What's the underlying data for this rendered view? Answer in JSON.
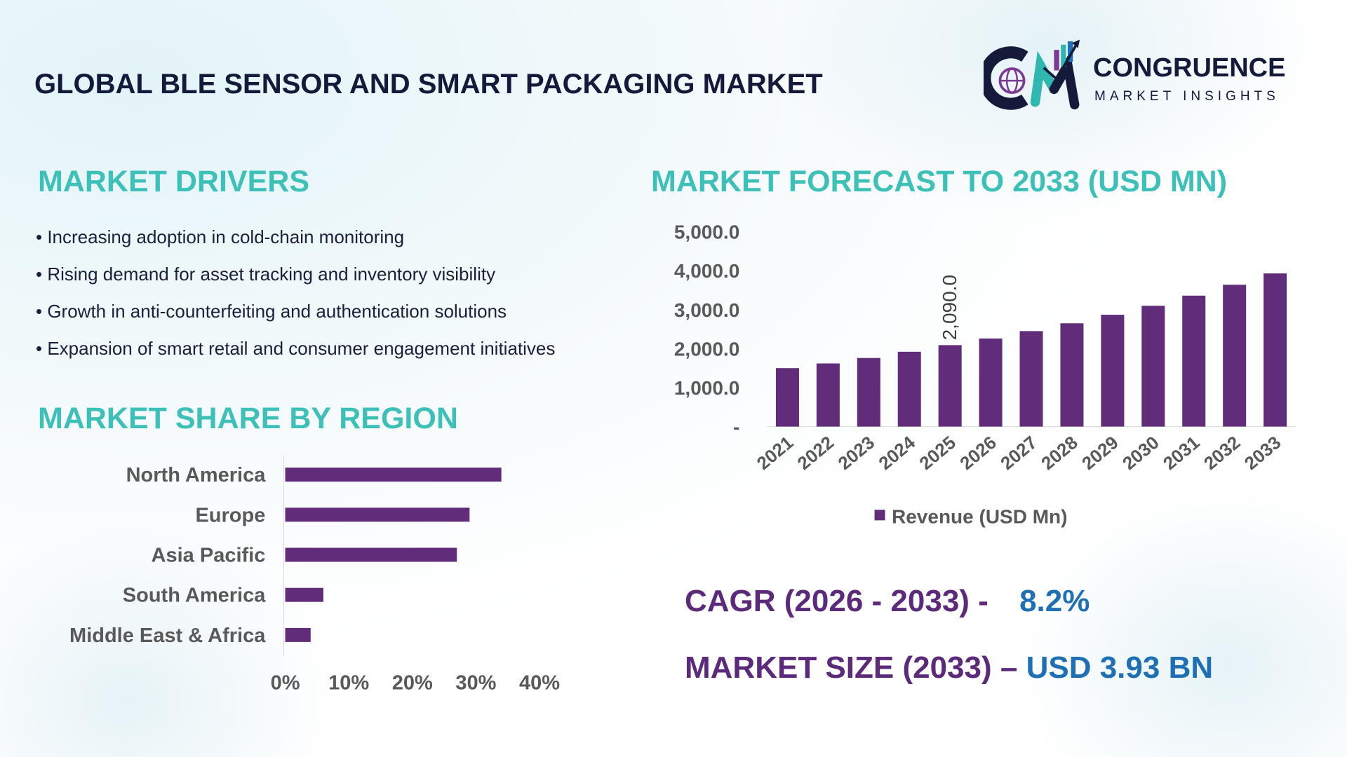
{
  "title": "GLOBAL BLE SENSOR AND SMART PACKAGING MARKET",
  "logo": {
    "name": "CONGRUENCE",
    "tagline": "MARKET INSIGHTS"
  },
  "drivers": {
    "heading": "MARKET DRIVERS",
    "items": [
      "• Increasing adoption in cold-chain monitoring",
      "• Rising demand for asset tracking and inventory visibility",
      "• Growth in anti-counterfeiting and authentication solutions",
      "• Expansion of smart retail and consumer engagement initiatives"
    ]
  },
  "forecast_heading": "MARKET FORECAST TO 2033 (USD MN)",
  "region_heading": "MARKET SHARE BY REGION",
  "stats": {
    "cagr_label": "CAGR (2026 - 2033) -",
    "cagr_value": "8.2%",
    "size_label": "MARKET SIZE (2033) –",
    "size_value": "USD 3.93 BN"
  },
  "colors": {
    "bar": "#612d7a",
    "heading": "#3cc0b8",
    "accent_blue": "#1f6fb5",
    "title": "#151a3a"
  },
  "chart_data": [
    {
      "type": "bar",
      "orientation": "vertical",
      "categories": [
        "2021",
        "2022",
        "2023",
        "2024",
        "2025",
        "2026",
        "2027",
        "2028",
        "2029",
        "2030",
        "2031",
        "2032",
        "2033"
      ],
      "series": [
        {
          "name": "Revenue (USD Mn)",
          "values": [
            1500,
            1620,
            1760,
            1920,
            2090,
            2260,
            2450,
            2650,
            2870,
            3100,
            3360,
            3640,
            3930
          ]
        }
      ],
      "data_labels": [
        {
          "category": "2025",
          "text": "2,090.0"
        }
      ],
      "yticks": [
        "-",
        "1,000.0",
        "2,000.0",
        "3,000.0",
        "4,000.0",
        "5,000.0"
      ],
      "ylim": [
        0,
        5000
      ],
      "legend": "bottom",
      "grid": false
    },
    {
      "type": "bar",
      "orientation": "horizontal",
      "categories": [
        "North America",
        "Europe",
        "Asia Pacific",
        "South America",
        "Middle East & Africa"
      ],
      "values": [
        34,
        29,
        27,
        6,
        4
      ],
      "xticks": [
        "0%",
        "10%",
        "20%",
        "30%",
        "40%"
      ],
      "xlim": [
        0,
        40
      ],
      "grid": false
    }
  ]
}
